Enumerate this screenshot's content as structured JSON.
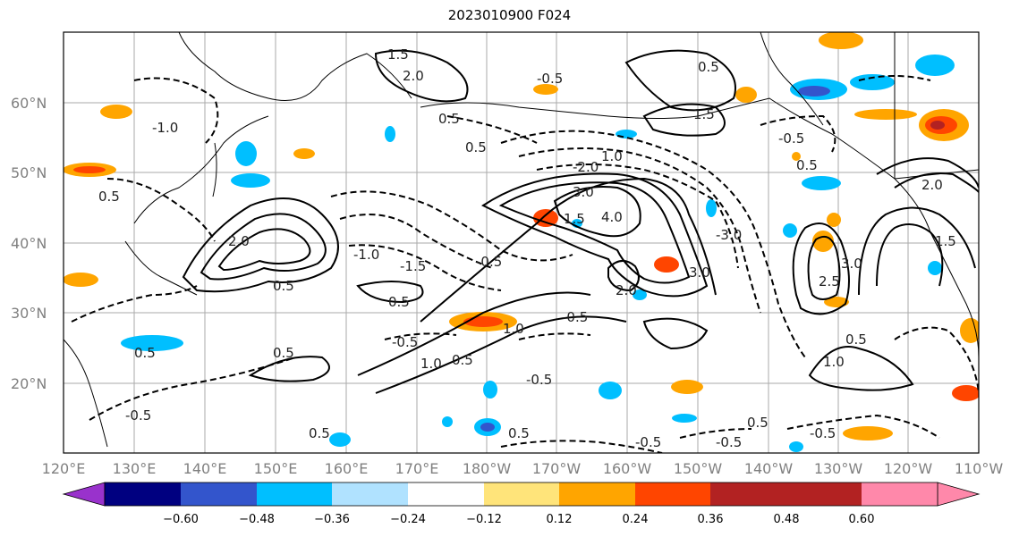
{
  "title": "2023010900 F024",
  "map": {
    "lon_labels": [
      "120°E",
      "130°E",
      "140°E",
      "150°E",
      "160°E",
      "170°E",
      "180°W",
      "170°W",
      "160°W",
      "150°W",
      "140°W",
      "130°W",
      "120°W",
      "110°W"
    ],
    "lat_labels": [
      "20°N",
      "30°N",
      "40°N",
      "50°N",
      "60°N"
    ],
    "contour_labels": [
      "1.5",
      "2.0",
      "0.5",
      "-0.5",
      "0.5",
      "1.5",
      "-1.0",
      "0.5",
      "0.5",
      "2.0",
      "0.5",
      "-1.0",
      "1.0",
      "-2.0",
      "3.0",
      "4.0",
      "1.5",
      "2.0",
      "3.0",
      "-3.0",
      "-1.5",
      "-0.5",
      "0.5",
      "0.5",
      "-0.5",
      "1.0",
      "-0.5",
      "0.5",
      "-0.5",
      "1.0",
      "0.5",
      "-0.5",
      "0.5",
      "0.5",
      "-0.5",
      "-0.5",
      "0.5",
      "-0.5",
      "2.5",
      "3.0",
      "2.0",
      "0.5",
      "1.0",
      "-0.5",
      "0.5",
      "1.5"
    ]
  },
  "colorbar": {
    "colors": [
      "#9932cc",
      "#000080",
      "#3355cc",
      "#00bfff",
      "#b0e2ff",
      "#ffffff",
      "#ffe47a",
      "#ffa500",
      "#ff4500",
      "#b22222",
      "#ff88aa"
    ],
    "tick_labels": [
      "−0.60",
      "−0.48",
      "−0.36",
      "−0.24",
      "−0.12",
      "0.12",
      "0.24",
      "0.36",
      "0.48",
      "0.60"
    ]
  }
}
